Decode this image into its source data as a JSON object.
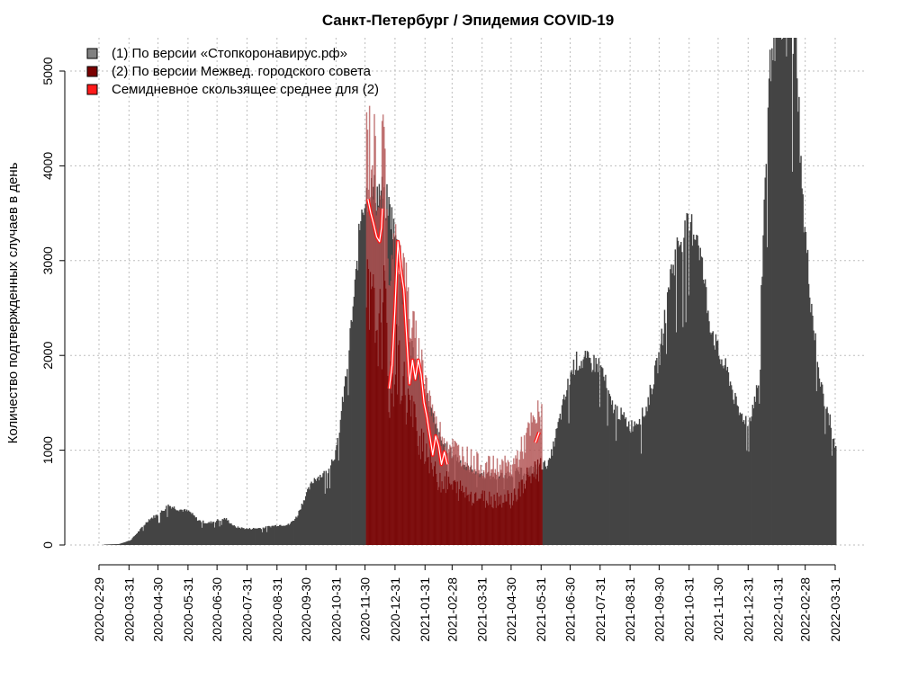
{
  "chart_data": {
    "type": "bar",
    "title": "Санкт-Петербург / Эпидемия COVID-19",
    "xlabel": "",
    "ylabel": "Количество подтвержденных случаев в день",
    "x_range": [
      "2020-02-29",
      "2022-03-31"
    ],
    "ylim": [
      0,
      5400
    ],
    "y_ticks": [
      0,
      1000,
      2000,
      3000,
      4000,
      5000
    ],
    "x_ticks": [
      "2020-02-29",
      "2020-03-31",
      "2020-04-30",
      "2020-05-31",
      "2020-06-30",
      "2020-07-31",
      "2020-08-31",
      "2020-09-30",
      "2020-10-31",
      "2020-11-30",
      "2020-12-31",
      "2021-01-31",
      "2021-02-28",
      "2021-03-31",
      "2021-04-30",
      "2021-05-31",
      "2021-06-30",
      "2021-07-31",
      "2021-08-31",
      "2021-09-30",
      "2021-10-31",
      "2021-11-30",
      "2021-12-31",
      "2022-01-31",
      "2022-02-28",
      "2022-03-31"
    ],
    "grid": true,
    "legend_position": "top-left",
    "series": [
      {
        "name": "(1) По версии «Стопкоронавирус.рф»",
        "type": "bar",
        "color": "#444444",
        "legend_color": "#808080",
        "anchors": [
          [
            "2020-03-05",
            5
          ],
          [
            "2020-03-20",
            10
          ],
          [
            "2020-04-01",
            50
          ],
          [
            "2020-04-10",
            150
          ],
          [
            "2020-04-20",
            270
          ],
          [
            "2020-05-01",
            330
          ],
          [
            "2020-05-10",
            420
          ],
          [
            "2020-05-20",
            380
          ],
          [
            "2020-06-01",
            350
          ],
          [
            "2020-06-10",
            260
          ],
          [
            "2020-06-20",
            230
          ],
          [
            "2020-06-30",
            260
          ],
          [
            "2020-07-08",
            280
          ],
          [
            "2020-07-18",
            190
          ],
          [
            "2020-07-31",
            170
          ],
          [
            "2020-08-15",
            180
          ],
          [
            "2020-08-31",
            210
          ],
          [
            "2020-09-12",
            215
          ],
          [
            "2020-09-20",
            300
          ],
          [
            "2020-09-28",
            500
          ],
          [
            "2020-10-08",
            700
          ],
          [
            "2020-10-20",
            760
          ],
          [
            "2020-10-31",
            1000
          ],
          [
            "2020-11-10",
            1800
          ],
          [
            "2020-11-20",
            2800
          ],
          [
            "2020-11-26",
            3600
          ],
          [
            "2020-12-03",
            3720
          ],
          [
            "2020-12-12",
            3720
          ],
          [
            "2020-12-18",
            3700
          ],
          [
            "2020-12-26",
            3500
          ],
          [
            "2021-01-05",
            2900
          ],
          [
            "2021-01-15",
            2100
          ],
          [
            "2021-01-31",
            1600
          ],
          [
            "2021-02-15",
            1100
          ],
          [
            "2021-02-28",
            950
          ],
          [
            "2021-03-15",
            820
          ],
          [
            "2021-03-31",
            740
          ],
          [
            "2021-04-15",
            720
          ],
          [
            "2021-04-30",
            760
          ],
          [
            "2021-05-15",
            780
          ],
          [
            "2021-05-31",
            830
          ],
          [
            "2021-06-08",
            870
          ],
          [
            "2021-06-18",
            1300
          ],
          [
            "2021-06-30",
            1800
          ],
          [
            "2021-07-05",
            1930
          ],
          [
            "2021-07-15",
            1940
          ],
          [
            "2021-07-31",
            1900
          ],
          [
            "2021-08-10",
            1500
          ],
          [
            "2021-08-31",
            1250
          ],
          [
            "2021-09-15",
            1400
          ],
          [
            "2021-09-30",
            2000
          ],
          [
            "2021-10-10",
            2800
          ],
          [
            "2021-10-20",
            3200
          ],
          [
            "2021-10-31",
            3350
          ],
          [
            "2021-11-08",
            3300
          ],
          [
            "2021-11-20",
            2400
          ],
          [
            "2021-11-30",
            2000
          ],
          [
            "2021-12-10",
            1800
          ],
          [
            "2021-12-20",
            1400
          ],
          [
            "2021-12-31",
            1300
          ],
          [
            "2022-01-10",
            1700
          ],
          [
            "2022-01-17",
            3900
          ],
          [
            "2022-01-24",
            5400
          ],
          [
            "2022-02-08",
            5400
          ],
          [
            "2022-02-18",
            5400
          ],
          [
            "2022-02-24",
            3700
          ],
          [
            "2022-03-05",
            2600
          ],
          [
            "2022-03-15",
            1700
          ],
          [
            "2022-03-25",
            1300
          ],
          [
            "2022-03-31",
            1000
          ]
        ]
      },
      {
        "name": "(2) По версии Межвед. городского совета",
        "type": "bar",
        "color": "#7a0a0a",
        "legend_color": "#7a0000",
        "anchors": [
          [
            "2020-12-01",
            3650
          ],
          [
            "2020-12-08",
            3450
          ],
          [
            "2020-12-15",
            3250
          ],
          [
            "2020-12-20",
            3550
          ],
          [
            "2020-12-25",
            2200
          ],
          [
            "2021-01-01",
            2800
          ],
          [
            "2021-01-10",
            2300
          ],
          [
            "2021-01-20",
            1800
          ],
          [
            "2021-01-31",
            1500
          ],
          [
            "2021-02-10",
            1050
          ],
          [
            "2021-02-20",
            950
          ],
          [
            "2021-02-28",
            870
          ],
          [
            "2021-03-15",
            780
          ],
          [
            "2021-03-31",
            700
          ],
          [
            "2021-04-15",
            700
          ],
          [
            "2021-04-30",
            700
          ],
          [
            "2021-05-10",
            850
          ],
          [
            "2021-05-20",
            1050
          ],
          [
            "2021-05-31",
            1200
          ]
        ]
      },
      {
        "name": "Семидневное скользящее среднее для (2)",
        "type": "line",
        "color": "#ff1a1a",
        "legend_color": "#ff1a1a",
        "points": [
          [
            "2020-12-03",
            3650
          ],
          [
            "2020-12-06",
            3500
          ],
          [
            "2020-12-09",
            3380
          ],
          [
            "2020-12-12",
            3250
          ],
          [
            "2020-12-15",
            3200
          ],
          [
            "2020-12-17",
            3350
          ],
          [
            "2020-12-18",
            3550
          ],
          [
            "2020-12-25",
            1650
          ],
          [
            "2020-12-28",
            1900
          ],
          [
            "2020-12-31",
            2500
          ],
          [
            "2021-01-03",
            3200
          ],
          [
            "2021-01-06",
            2900
          ],
          [
            "2021-01-09",
            2700
          ],
          [
            "2021-01-12",
            2200
          ],
          [
            "2021-01-15",
            1700
          ],
          [
            "2021-01-18",
            1950
          ],
          [
            "2021-01-21",
            1750
          ],
          [
            "2021-01-24",
            1950
          ],
          [
            "2021-01-27",
            1800
          ],
          [
            "2021-01-30",
            1500
          ],
          [
            "2021-02-02",
            1350
          ],
          [
            "2021-02-05",
            1150
          ],
          [
            "2021-02-08",
            950
          ],
          [
            "2021-02-11",
            1150
          ],
          [
            "2021-02-14",
            1050
          ],
          [
            "2021-02-17",
            850
          ],
          [
            "2021-02-20",
            980
          ],
          [
            "2021-02-23",
            850
          ],
          [
            "2021-02-28",
            820
          ],
          [
            "2021-03-05",
            870
          ],
          [
            "2021-03-10",
            780
          ],
          [
            "2021-03-15",
            760
          ],
          [
            "2021-03-20",
            710
          ],
          [
            "2021-03-25",
            720
          ],
          [
            "2021-03-31",
            700
          ],
          [
            "2021-04-05",
            690
          ],
          [
            "2021-04-10",
            720
          ],
          [
            "2021-04-15",
            700
          ],
          [
            "2021-04-20",
            740
          ],
          [
            "2021-04-25",
            660
          ],
          [
            "2021-04-30",
            700
          ],
          [
            "2021-05-05",
            800
          ],
          [
            "2021-05-10",
            860
          ],
          [
            "2021-05-15",
            920
          ],
          [
            "2021-05-20",
            1050
          ],
          [
            "2021-05-25",
            1080
          ],
          [
            "2021-05-29",
            1190
          ]
        ]
      }
    ]
  }
}
